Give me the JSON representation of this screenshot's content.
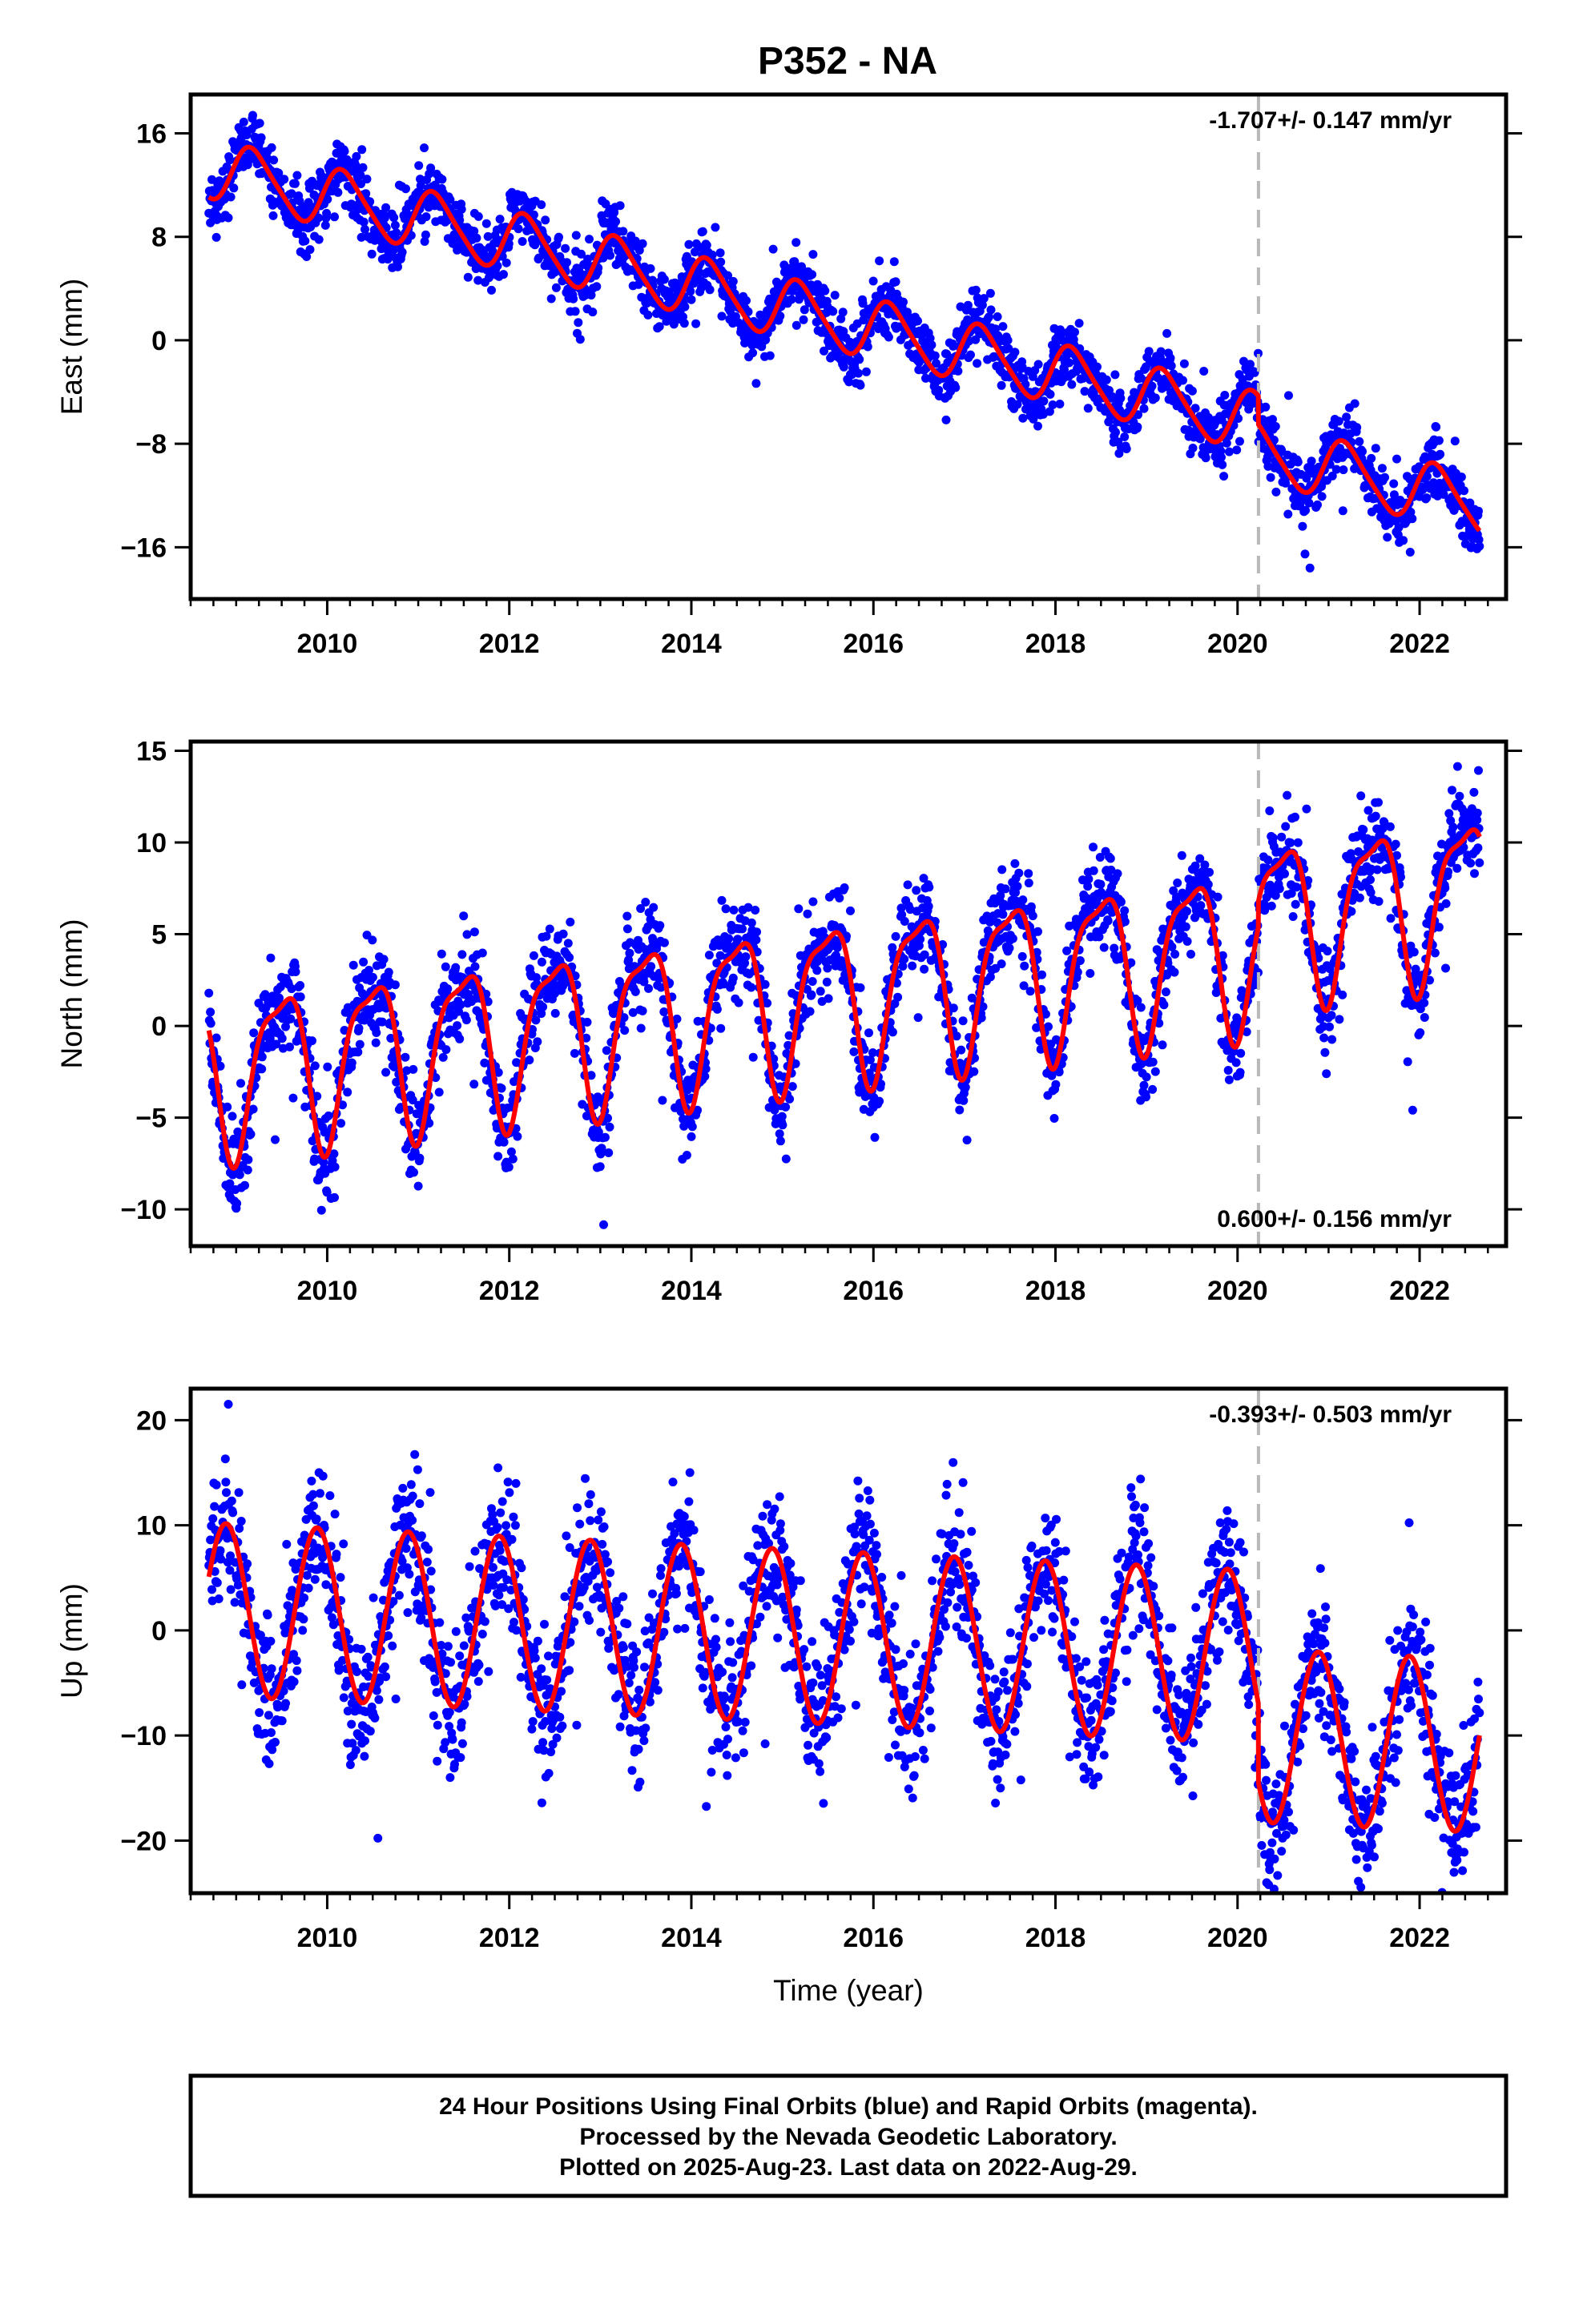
{
  "page": {
    "title": "P352 - NA"
  },
  "chart_data": [
    {
      "type": "scatter",
      "component": "east",
      "ylabel": "East (mm)",
      "xlim": [
        2008.5,
        2022.95
      ],
      "ylim": [
        -20,
        19
      ],
      "xticks": [
        2010,
        2012,
        2014,
        2016,
        2018,
        2020,
        2022
      ],
      "xtick_labels": [
        "2010",
        "2012",
        "2014",
        "2016",
        "2018",
        "2020",
        "2022"
      ],
      "yticks": [
        -16,
        -8,
        0,
        8,
        16
      ],
      "ytick_labels": [
        "−16",
        "−8",
        "0",
        "8",
        "16"
      ],
      "rate_label": "-1.707+/- 0.147 mm/yr",
      "rate_position": "top-right",
      "equipment_change": 2020.23,
      "data_range": [
        2008.7,
        2022.66
      ],
      "model": {
        "rate": -1.707,
        "intercept_2008_7": 13.3,
        "annual_sin": 2.1,
        "annual_cos": 0.8,
        "semiannual_sin": 0.3,
        "semiannual_cos": 0.2,
        "offset_at_change": -2.2
      },
      "scatter_spread": 1.2,
      "point_color": "#0000ff",
      "model_color": "#ff0000"
    },
    {
      "type": "scatter",
      "component": "north",
      "ylabel": "North (mm)",
      "xlim": [
        2008.5,
        2022.95
      ],
      "ylim": [
        -12,
        15.5
      ],
      "xticks": [
        2010,
        2012,
        2014,
        2016,
        2018,
        2020,
        2022
      ],
      "xtick_labels": [
        "2010",
        "2012",
        "2014",
        "2016",
        "2018",
        "2020",
        "2022"
      ],
      "yticks": [
        -10,
        -5,
        0,
        5,
        10,
        15
      ],
      "ytick_labels": [
        "−10",
        "−5",
        "0",
        "5",
        "10",
        "15"
      ],
      "rate_label": "0.600+/- 0.156 mm/yr",
      "rate_position": "bottom-right",
      "equipment_change": 2020.23,
      "data_range": [
        2008.7,
        2022.66
      ],
      "model": {
        "rate": 0.6,
        "intercept_2008_7": -2.5,
        "annual_sin": 0.3,
        "annual_cos": -4.2,
        "semiannual_sin": 0.6,
        "semiannual_cos": -1.1,
        "offset_at_change": 1.4
      },
      "scatter_spread": 1.3,
      "point_color": "#0000ff",
      "model_color": "#ff0000"
    },
    {
      "type": "scatter",
      "component": "up",
      "ylabel": "Up (mm)",
      "xlabel": "Time (year)",
      "xlim": [
        2008.5,
        2022.95
      ],
      "ylim": [
        -25,
        23
      ],
      "xticks": [
        2010,
        2012,
        2014,
        2016,
        2018,
        2020,
        2022
      ],
      "xtick_labels": [
        "2010",
        "2012",
        "2014",
        "2016",
        "2018",
        "2020",
        "2022"
      ],
      "yticks": [
        -20,
        -10,
        0,
        10,
        20
      ],
      "ytick_labels": [
        "−20",
        "−10",
        "0",
        "10",
        "20"
      ],
      "rate_label": "-0.393+/- 0.503 mm/yr",
      "rate_position": "top-right",
      "equipment_change": 2020.23,
      "data_range": [
        2008.7,
        2022.66
      ],
      "model": {
        "rate": -0.393,
        "intercept_2008_7": 2.0,
        "annual_sin": -5.3,
        "annual_cos": 6.3,
        "semiannual_sin": 0.0,
        "semiannual_cos": 0.0,
        "offset_at_change": -7.5
      },
      "scatter_spread": 3.2,
      "point_color": "#0000ff",
      "model_color": "#ff0000"
    }
  ],
  "footer": {
    "line1": "24 Hour Positions Using Final Orbits (blue) and Rapid Orbits (magenta).",
    "line2": "Processed by the Nevada Geodetic Laboratory.",
    "line3": "Plotted on 2025-Aug-23. Last data on 2022-Aug-29."
  }
}
